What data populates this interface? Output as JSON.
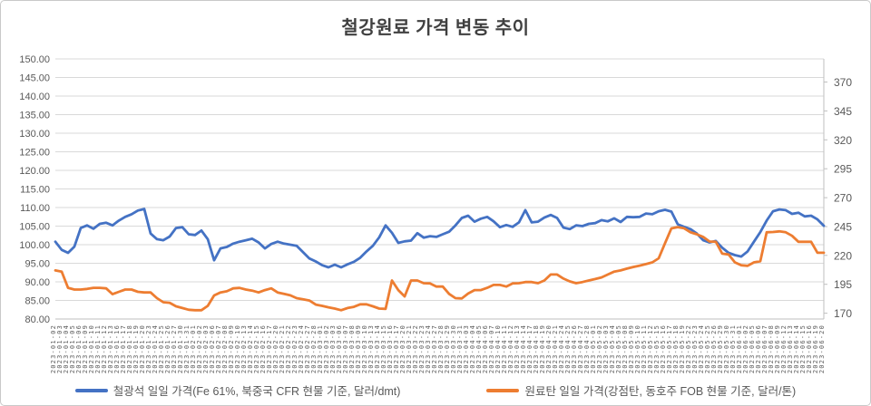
{
  "title": "철강원료 가격 변동 추이",
  "colors": {
    "iron_ore_line": "#4472C4",
    "coking_coal_line": "#ED7D31",
    "gridline": "#D9D9D9",
    "axis_line": "#BFBFBF",
    "tick_text": "#595959",
    "title_text": "#404040"
  },
  "chart_data": {
    "type": "line",
    "title": "철강원료 가격 변동 추이",
    "grid": true,
    "legend_position": "bottom",
    "left_axis": {
      "min": 80,
      "max": 150,
      "step": 5,
      "ticks": [
        150,
        145,
        140,
        135,
        130,
        125,
        120,
        115,
        110,
        105,
        100,
        95,
        90,
        85,
        80
      ],
      "labels": [
        "150.00",
        "145.00",
        "140.00",
        "135.00",
        "130.00",
        "125.00",
        "120.00",
        "115.00",
        "110.00",
        "105.00",
        "100.00",
        "95.00",
        "90.00",
        "85.00",
        "80.00"
      ]
    },
    "right_axis": {
      "scale_min": 165,
      "scale_max": 390,
      "step": 25,
      "ticks": [
        370,
        345,
        320,
        295,
        270,
        245,
        220,
        195,
        170
      ],
      "labels": [
        "370",
        "345",
        "320",
        "295",
        "270",
        "245",
        "220",
        "195",
        "170"
      ]
    },
    "x": [
      "2023-01-02",
      "2023-01-03",
      "2023-01-04",
      "2023-01-05",
      "2023-01-06",
      "2023-01-09",
      "2023-01-10",
      "2023-01-11",
      "2023-01-12",
      "2023-01-13",
      "2023-01-16",
      "2023-01-17",
      "2023-01-18",
      "2023-01-19",
      "2023-01-20",
      "2023-01-23",
      "2023-01-24",
      "2023-01-25",
      "2023-01-26",
      "2023-01-27",
      "2023-01-30",
      "2023-01-31",
      "2023-02-01",
      "2023-02-02",
      "2023-02-03",
      "2023-02-06",
      "2023-02-07",
      "2023-02-08",
      "2023-02-09",
      "2023-02-10",
      "2023-02-13",
      "2023-02-14",
      "2023-02-15",
      "2023-02-16",
      "2023-02-17",
      "2023-02-20",
      "2023-02-21",
      "2023-02-22",
      "2023-02-23",
      "2023-02-24",
      "2023-02-27",
      "2023-02-28",
      "2023-03-01",
      "2023-03-02",
      "2023-03-03",
      "2023-03-06",
      "2023-03-07",
      "2023-03-08",
      "2023-03-09",
      "2023-03-10",
      "2023-03-13",
      "2023-03-14",
      "2023-03-15",
      "2023-03-16",
      "2023-03-17",
      "2023-03-20",
      "2023-03-21",
      "2023-03-22",
      "2023-03-23",
      "2023-03-24",
      "2023-03-27",
      "2023-03-28",
      "2023-03-29",
      "2023-03-30",
      "2023-03-31",
      "2023-04-03",
      "2023-04-04",
      "2023-04-05",
      "2023-04-06",
      "2023-04-07",
      "2023-04-10",
      "2023-04-11",
      "2023-04-12",
      "2023-04-13",
      "2023-04-14",
      "2023-04-17",
      "2023-04-18",
      "2023-04-19",
      "2023-04-20",
      "2023-04-21",
      "2023-04-24",
      "2023-04-25",
      "2023-04-26",
      "2023-04-27",
      "2023-04-28",
      "2023-05-01",
      "2023-05-02",
      "2023-05-03",
      "2023-05-04",
      "2023-05-05",
      "2023-05-08",
      "2023-05-09",
      "2023-05-10",
      "2023-05-11",
      "2023-05-12",
      "2023-05-15",
      "2023-05-16",
      "2023-05-17",
      "2023-05-18",
      "2023-05-19",
      "2023-05-22",
      "2023-05-23",
      "2023-05-24",
      "2023-05-25",
      "2023-05-26",
      "2023-05-29",
      "2023-05-30",
      "2023-05-31",
      "2023-06-01",
      "2023-06-02",
      "2023-06-05",
      "2023-06-06",
      "2023-06-07",
      "2023-06-08",
      "2023-06-09",
      "2023-06-12",
      "2023-06-13",
      "2023-06-14",
      "2023-06-15",
      "2023-06-16",
      "2023-06-19",
      "2023-06-20"
    ],
    "series": [
      {
        "name": "철광석 일일 가격(Fe 61%, 북중국 CFR 현물 기준, 달러/dmt)",
        "axis": "left",
        "color": "#4472C4",
        "values": [
          100.8,
          98.6,
          97.8,
          99.5,
          104.5,
          105.2,
          104.3,
          105.6,
          105.9,
          105.2,
          106.5,
          107.5,
          108.2,
          109.2,
          109.6,
          103.0,
          101.5,
          101.2,
          102.2,
          104.5,
          104.7,
          102.8,
          102.6,
          103.8,
          101.5,
          95.8,
          99.0,
          99.4,
          100.3,
          100.8,
          101.2,
          101.6,
          100.6,
          99.0,
          100.2,
          100.8,
          100.3,
          100.0,
          99.7,
          98.0,
          96.3,
          95.5,
          94.5,
          93.9,
          94.6,
          93.9,
          94.7,
          95.4,
          96.5,
          98.2,
          99.7,
          102.0,
          105.2,
          103.2,
          100.5,
          100.9,
          101.1,
          103.1,
          101.9,
          102.3,
          102.1,
          102.8,
          103.5,
          105.2,
          107.2,
          107.8,
          106.2,
          107.0,
          107.5,
          106.3,
          104.7,
          105.3,
          104.8,
          106.0,
          109.3,
          106.0,
          106.2,
          107.3,
          108.0,
          107.2,
          104.6,
          104.2,
          105.2,
          105.0,
          105.6,
          105.8,
          106.6,
          106.3,
          107.1,
          106.1,
          107.5,
          107.4,
          107.5,
          108.4,
          108.2,
          109.0,
          109.4,
          108.9,
          105.5,
          104.8,
          104.2,
          103.0,
          101.2,
          100.6,
          101.0,
          99.2,
          97.8,
          97.2,
          96.8,
          98.2,
          100.8,
          103.4,
          106.5,
          109.0,
          109.5,
          109.3,
          108.3,
          108.6,
          107.6,
          107.8,
          106.8,
          105.1
        ]
      },
      {
        "name": "원료탄 일일 가격(강점탄, 동호주 FOB 현물 기준, 달러/톤)",
        "axis": "right",
        "color": "#ED7D31",
        "values": [
          207,
          206,
          192,
          190.5,
          190.5,
          191,
          192,
          192,
          191.5,
          186.5,
          188.5,
          190.5,
          190.5,
          188.5,
          188,
          188,
          183,
          179.5,
          179,
          176,
          174.5,
          173,
          172.6,
          172.6,
          176.4,
          185.4,
          188,
          189,
          191.5,
          191.9,
          190.5,
          189.5,
          188,
          190,
          191.5,
          188,
          186.7,
          185.5,
          183,
          182,
          181,
          177.5,
          176.4,
          175.1,
          174,
          172.6,
          174.5,
          175.5,
          177.7,
          177.7,
          176,
          174,
          173.8,
          198.3,
          190,
          184.5,
          198.3,
          198.3,
          196,
          195.8,
          193.1,
          193.1,
          186.7,
          183,
          182.8,
          187,
          190,
          190,
          192,
          194.5,
          194.5,
          193.1,
          195.8,
          196,
          197,
          197,
          196,
          198.3,
          203.5,
          203.5,
          200,
          197.5,
          196,
          197,
          198.3,
          199.6,
          201,
          203.5,
          206,
          207,
          208.6,
          210,
          211.2,
          212.5,
          214,
          217.5,
          230.6,
          243.4,
          244.5,
          243.5,
          240,
          238.3,
          236,
          232,
          231.8,
          221.5,
          220.8,
          214,
          211.5,
          211,
          214,
          215,
          240,
          240.3,
          240.8,
          240,
          237,
          231.8,
          231.8,
          231.8,
          222.3,
          222.3
        ]
      }
    ]
  },
  "legend": {
    "iron_ore_label": "철광석 일일 가격(Fe 61%, 북중국 CFR 현물 기준, 달러/dmt)",
    "coking_coal_label": "원료탄 일일 가격(강점탄, 동호주 FOB 현물 기준, 달러/톤)"
  }
}
